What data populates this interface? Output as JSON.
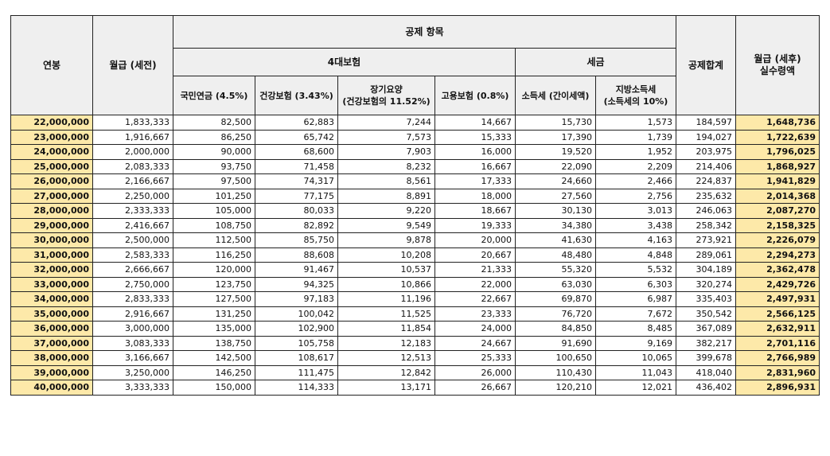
{
  "header": {
    "annual": "연봉",
    "monthly_pre": "월급 (세전)",
    "deductions": "공제 항목",
    "four_insurance": "4대보험",
    "tax": "세금",
    "total_deduction": "공제합계",
    "net_line1": "월급 (세후)",
    "net_line2": "실수령액",
    "pension": "국민연금 (4.5%)",
    "health": "건강보험 (3.43%)",
    "ltc_line1": "장기요양",
    "ltc_line2": "(건강보험의 11.52%)",
    "employment": "고용보험 (0.8%)",
    "income_tax": "소득세 (간이세액)",
    "local_tax_line1": "지방소득세",
    "local_tax_line2": "(소득세의 10%)"
  },
  "rows": [
    [
      "22,000,000",
      "1,833,333",
      "82,500",
      "62,883",
      "7,244",
      "14,667",
      "15,730",
      "1,573",
      "184,597",
      "1,648,736"
    ],
    [
      "23,000,000",
      "1,916,667",
      "86,250",
      "65,742",
      "7,573",
      "15,333",
      "17,390",
      "1,739",
      "194,027",
      "1,722,639"
    ],
    [
      "24,000,000",
      "2,000,000",
      "90,000",
      "68,600",
      "7,903",
      "16,000",
      "19,520",
      "1,952",
      "203,975",
      "1,796,025"
    ],
    [
      "25,000,000",
      "2,083,333",
      "93,750",
      "71,458",
      "8,232",
      "16,667",
      "22,090",
      "2,209",
      "214,406",
      "1,868,927"
    ],
    [
      "26,000,000",
      "2,166,667",
      "97,500",
      "74,317",
      "8,561",
      "17,333",
      "24,660",
      "2,466",
      "224,837",
      "1,941,829"
    ],
    [
      "27,000,000",
      "2,250,000",
      "101,250",
      "77,175",
      "8,891",
      "18,000",
      "27,560",
      "2,756",
      "235,632",
      "2,014,368"
    ],
    [
      "28,000,000",
      "2,333,333",
      "105,000",
      "80,033",
      "9,220",
      "18,667",
      "30,130",
      "3,013",
      "246,063",
      "2,087,270"
    ],
    [
      "29,000,000",
      "2,416,667",
      "108,750",
      "82,892",
      "9,549",
      "19,333",
      "34,380",
      "3,438",
      "258,342",
      "2,158,325"
    ],
    [
      "30,000,000",
      "2,500,000",
      "112,500",
      "85,750",
      "9,878",
      "20,000",
      "41,630",
      "4,163",
      "273,921",
      "2,226,079"
    ],
    [
      "31,000,000",
      "2,583,333",
      "116,250",
      "88,608",
      "10,208",
      "20,667",
      "48,480",
      "4,848",
      "289,061",
      "2,294,273"
    ],
    [
      "32,000,000",
      "2,666,667",
      "120,000",
      "91,467",
      "10,537",
      "21,333",
      "55,320",
      "5,532",
      "304,189",
      "2,362,478"
    ],
    [
      "33,000,000",
      "2,750,000",
      "123,750",
      "94,325",
      "10,866",
      "22,000",
      "63,030",
      "6,303",
      "320,274",
      "2,429,726"
    ],
    [
      "34,000,000",
      "2,833,333",
      "127,500",
      "97,183",
      "11,196",
      "22,667",
      "69,870",
      "6,987",
      "335,403",
      "2,497,931"
    ],
    [
      "35,000,000",
      "2,916,667",
      "131,250",
      "100,042",
      "11,525",
      "23,333",
      "76,720",
      "7,672",
      "350,542",
      "2,566,125"
    ],
    [
      "36,000,000",
      "3,000,000",
      "135,000",
      "102,900",
      "11,854",
      "24,000",
      "84,850",
      "8,485",
      "367,089",
      "2,632,911"
    ],
    [
      "37,000,000",
      "3,083,333",
      "138,750",
      "105,758",
      "12,183",
      "24,667",
      "91,690",
      "9,169",
      "382,217",
      "2,701,116"
    ],
    [
      "38,000,000",
      "3,166,667",
      "142,500",
      "108,617",
      "12,513",
      "25,333",
      "100,650",
      "10,065",
      "399,678",
      "2,766,989"
    ],
    [
      "39,000,000",
      "3,250,000",
      "146,250",
      "111,475",
      "12,842",
      "26,000",
      "110,430",
      "11,043",
      "418,040",
      "2,831,960"
    ],
    [
      "40,000,000",
      "3,333,333",
      "150,000",
      "114,333",
      "13,171",
      "26,667",
      "120,210",
      "12,021",
      "436,402",
      "2,896,931"
    ]
  ]
}
